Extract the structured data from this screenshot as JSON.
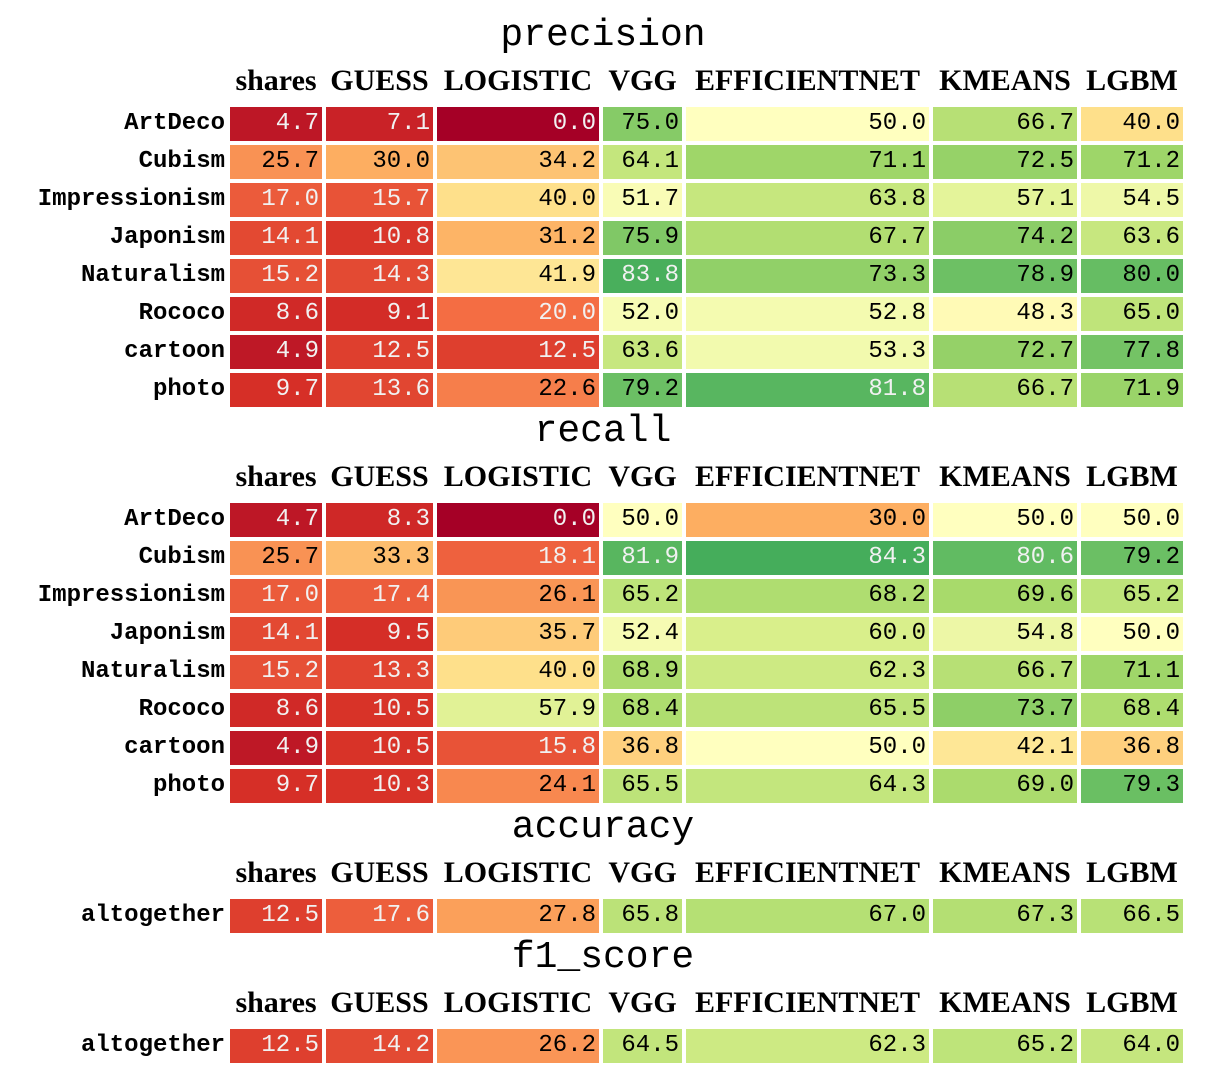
{
  "chart_data": {
    "type": "heatmap",
    "colormap": "RdYlGn",
    "value_range": [
      0,
      100
    ],
    "columns": [
      "shares",
      "GUESS",
      "LOGISTIC",
      "VGG",
      "EFFICIENTNET",
      "KMEANS",
      "LGBM"
    ],
    "tables": [
      {
        "title": "precision",
        "rows": [
          "ArtDeco",
          "Cubism",
          "Impressionism",
          "Japonism",
          "Naturalism",
          "Rococo",
          "cartoon",
          "photo"
        ],
        "values": [
          [
            4.7,
            7.1,
            0.0,
            75.0,
            50.0,
            66.7,
            40.0
          ],
          [
            25.7,
            30.0,
            34.2,
            64.1,
            71.1,
            72.5,
            71.2
          ],
          [
            17.0,
            15.7,
            40.0,
            51.7,
            63.8,
            57.1,
            54.5
          ],
          [
            14.1,
            10.8,
            31.2,
            75.9,
            67.7,
            74.2,
            63.6
          ],
          [
            15.2,
            14.3,
            41.9,
            83.8,
            73.3,
            78.9,
            80.0
          ],
          [
            8.6,
            9.1,
            20.0,
            52.0,
            52.8,
            48.3,
            65.0
          ],
          [
            4.9,
            12.5,
            12.5,
            63.6,
            53.3,
            72.7,
            77.8
          ],
          [
            9.7,
            13.6,
            22.6,
            79.2,
            81.8,
            66.7,
            71.9
          ]
        ]
      },
      {
        "title": "recall",
        "rows": [
          "ArtDeco",
          "Cubism",
          "Impressionism",
          "Japonism",
          "Naturalism",
          "Rococo",
          "cartoon",
          "photo"
        ],
        "values": [
          [
            4.7,
            8.3,
            0.0,
            50.0,
            30.0,
            50.0,
            50.0
          ],
          [
            25.7,
            33.3,
            18.1,
            81.9,
            84.3,
            80.6,
            79.2
          ],
          [
            17.0,
            17.4,
            26.1,
            65.2,
            68.2,
            69.6,
            65.2
          ],
          [
            14.1,
            9.5,
            35.7,
            52.4,
            60.0,
            54.8,
            50.0
          ],
          [
            15.2,
            13.3,
            40.0,
            68.9,
            62.3,
            66.7,
            71.1
          ],
          [
            8.6,
            10.5,
            57.9,
            68.4,
            65.5,
            73.7,
            68.4
          ],
          [
            4.9,
            10.5,
            15.8,
            36.8,
            50.0,
            42.1,
            36.8
          ],
          [
            9.7,
            10.3,
            24.1,
            65.5,
            64.3,
            69.0,
            79.3
          ]
        ]
      },
      {
        "title": "accuracy",
        "rows": [
          "altogether"
        ],
        "values": [
          [
            12.5,
            17.6,
            27.8,
            65.8,
            67.0,
            67.3,
            66.5
          ]
        ]
      },
      {
        "title": "f1_score",
        "rows": [
          "altogether"
        ],
        "values": [
          [
            12.5,
            14.2,
            26.2,
            64.5,
            62.3,
            65.2,
            64.0
          ]
        ]
      }
    ]
  }
}
